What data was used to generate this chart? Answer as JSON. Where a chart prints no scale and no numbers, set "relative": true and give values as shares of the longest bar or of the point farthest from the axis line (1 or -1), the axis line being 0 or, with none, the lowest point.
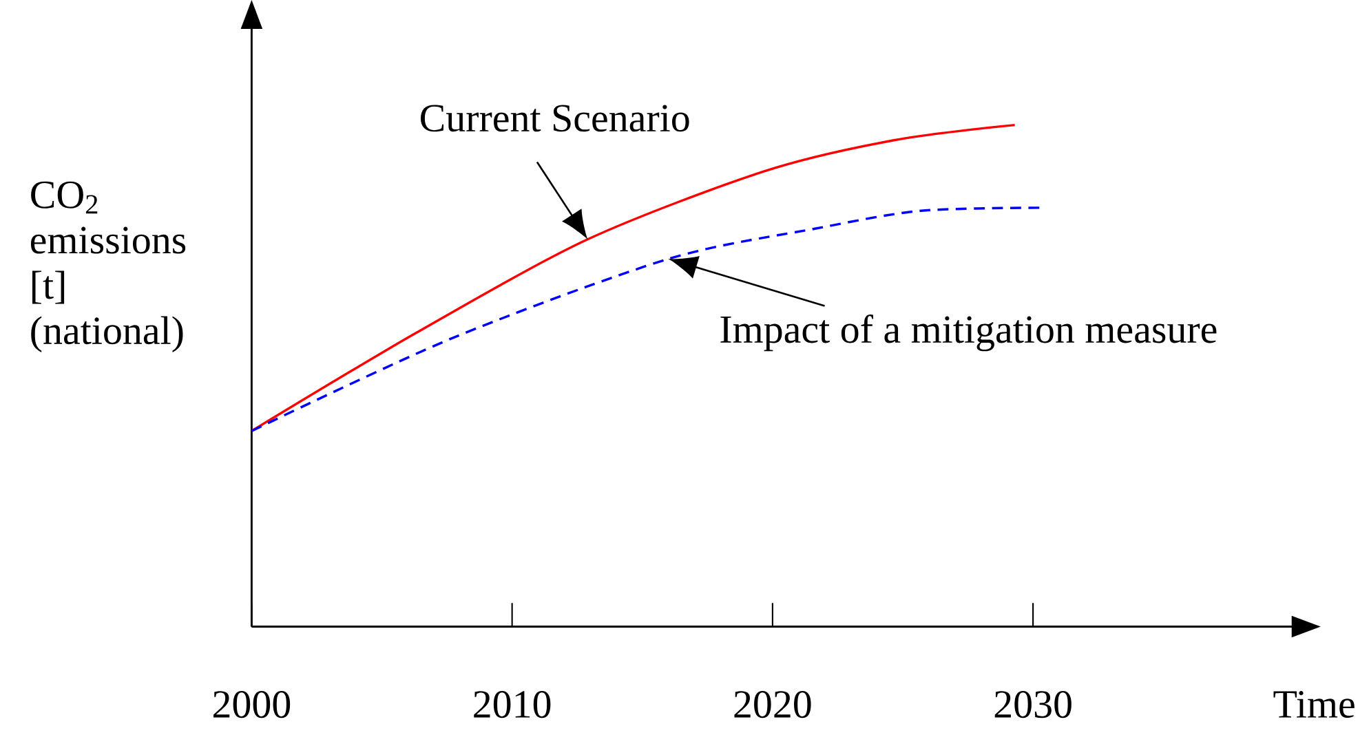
{
  "chart_data": {
    "type": "line",
    "relative": true,
    "xlabel": "Time",
    "ylabel": "CO$_{2}$ emissions [t] (national)",
    "xlim": [
      2000,
      2040
    ],
    "xticks": [
      2000,
      2010,
      2020,
      2030
    ],
    "marker": "none",
    "series": [
      {
        "name": "Current Scenario",
        "color": "#ff0000",
        "line_style": "solid",
        "x": [
          2000,
          2006.3,
          2012.9,
          2019.7,
          2024.7,
          2029.3
        ],
        "values": [
          0.39,
          0.585,
          0.772,
          0.908,
          0.97,
          1.0
        ]
      },
      {
        "name": "Impact of a mitigation measure",
        "color": "#0000ff",
        "line_style": "dashed",
        "x": [
          2000,
          2007.7,
          2016,
          2021.7,
          2025.7,
          2030.3
        ],
        "values": [
          0.39,
          0.575,
          0.733,
          0.794,
          0.829,
          0.835
        ]
      }
    ]
  }
}
